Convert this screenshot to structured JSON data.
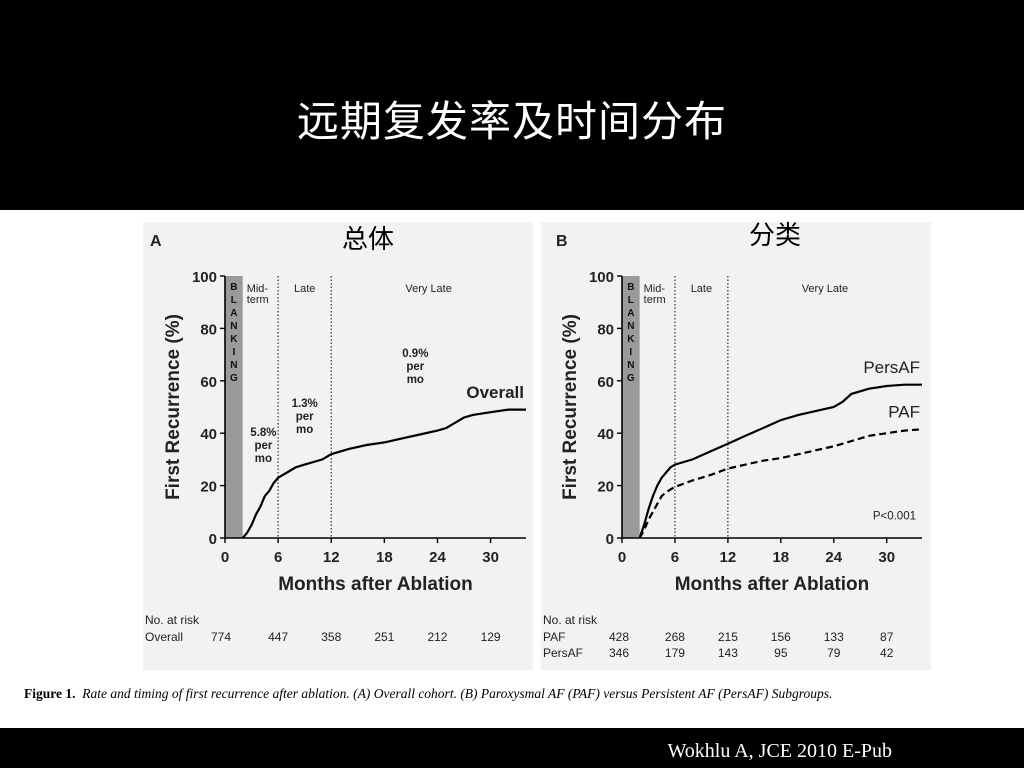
{
  "slide": {
    "title": "远期复发率及时间分布",
    "citation": "Wokhlu A, JCE 2010 E-Pub"
  },
  "figure": {
    "caption_label": "Figure 1.",
    "caption_text": "Rate and timing of first recurrence after ablation. (A) Overall cohort. (B) Paroxysmal AF (PAF) versus Persistent AF (PersAF) Subgroups."
  },
  "chart_data": [
    {
      "type": "line",
      "panel_label": "A",
      "overlay_label": "总体",
      "xlabel": "Months after Ablation",
      "ylabel": "First Recurrence (%)",
      "xlim": [
        0,
        34
      ],
      "ylim": [
        0,
        100
      ],
      "x_ticks": [
        0,
        6,
        12,
        18,
        24,
        30
      ],
      "y_ticks": [
        0,
        20,
        40,
        60,
        80,
        100
      ],
      "blanking_letters": [
        "B",
        "L",
        "A",
        "N",
        "K",
        "I",
        "N",
        "G"
      ],
      "blanking_range": [
        0,
        2
      ],
      "period_lines": [
        6,
        12
      ],
      "period_labels": [
        "Mid-\nterm",
        "Late",
        "Very Late"
      ],
      "rate_annotations": [
        "5.8%\nper\nmo",
        "1.3%\nper\nmo",
        "0.9%\nper\nmo"
      ],
      "series": [
        {
          "name": "Overall",
          "style": "solid",
          "x": [
            2,
            2.5,
            3,
            3.5,
            4,
            4.5,
            5,
            5.5,
            6,
            7,
            8,
            9,
            10,
            11,
            12,
            14,
            16,
            18,
            20,
            22,
            24,
            25,
            26,
            27,
            28,
            30,
            32,
            34
          ],
          "y": [
            0,
            2,
            5,
            9,
            12,
            16,
            18,
            21,
            23,
            25,
            27,
            28,
            29,
            30,
            32,
            34,
            35.5,
            36.5,
            38,
            39.5,
            41,
            42,
            44,
            46,
            47,
            48,
            49,
            49
          ]
        }
      ],
      "at_risk": {
        "header": "No. at risk",
        "x": [
          0,
          6,
          12,
          18,
          24,
          30
        ],
        "rows": [
          {
            "name": "Overall",
            "values": [
              "774",
              "447",
              "358",
              "251",
              "212",
              "129"
            ]
          }
        ]
      }
    },
    {
      "type": "line",
      "panel_label": "B",
      "overlay_label": "分类",
      "xlabel": "Months after Ablation",
      "ylabel": "First Recurrence (%)",
      "xlim": [
        0,
        34
      ],
      "ylim": [
        0,
        100
      ],
      "x_ticks": [
        0,
        6,
        12,
        18,
        24,
        30
      ],
      "y_ticks": [
        0,
        20,
        40,
        60,
        80,
        100
      ],
      "blanking_letters": [
        "B",
        "L",
        "A",
        "N",
        "K",
        "I",
        "N",
        "G"
      ],
      "blanking_range": [
        0,
        2
      ],
      "period_lines": [
        6,
        12
      ],
      "period_labels": [
        "Mid-\nterm",
        "Late",
        "Very Late"
      ],
      "p_value": "P<0.001",
      "series": [
        {
          "name": "PersAF",
          "style": "solid",
          "x": [
            2,
            2.5,
            3,
            3.5,
            4,
            4.5,
            5,
            5.5,
            6,
            8,
            10,
            12,
            14,
            16,
            18,
            20,
            22,
            24,
            25,
            26,
            28,
            30,
            32,
            34
          ],
          "y": [
            0,
            5,
            11,
            16,
            20,
            23,
            25,
            27,
            28,
            30,
            33,
            36,
            39,
            42,
            45,
            47,
            48.5,
            50,
            52,
            55,
            57,
            58,
            58.5,
            58.5
          ]
        },
        {
          "name": "PAF",
          "style": "dashed",
          "x": [
            2,
            2.5,
            3,
            3.5,
            4,
            4.5,
            5,
            5.5,
            6,
            8,
            10,
            12,
            14,
            16,
            18,
            20,
            22,
            24,
            26,
            28,
            30,
            32,
            34
          ],
          "y": [
            0,
            3,
            7,
            10,
            13,
            16,
            17.5,
            18.5,
            19.5,
            22,
            24,
            26.5,
            28,
            29.5,
            30.5,
            32,
            33.5,
            35,
            37,
            39,
            40,
            41,
            41.5
          ]
        }
      ],
      "at_risk": {
        "header": "No. at risk",
        "x": [
          0,
          6,
          12,
          18,
          24,
          30
        ],
        "rows": [
          {
            "name": "PAF",
            "values": [
              "428",
              "268",
              "215",
              "156",
              "133",
              "87"
            ]
          },
          {
            "name": "PersAF",
            "values": [
              "346",
              "179",
              "143",
              "95",
              "79",
              "42"
            ]
          }
        ]
      }
    }
  ]
}
